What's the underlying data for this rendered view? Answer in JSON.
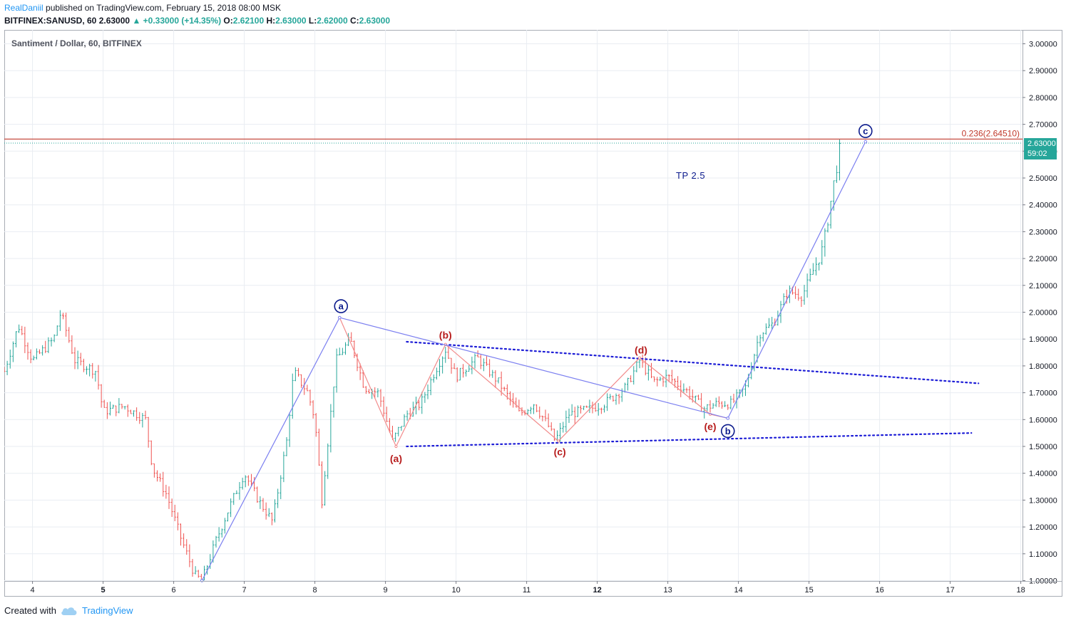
{
  "header": {
    "author": "RealDaniil",
    "published": "published on TradingView.com, February 15, 2018 08:00 MSK",
    "symbol_line": "BITFINEX:SANUSD, 60",
    "last": "2.63000",
    "change": "▲ +0.33000 (+14.35%)",
    "o_label": "O:",
    "o_value": "2.62100",
    "h_label": "H:",
    "h_value": "2.63000",
    "l_label": "L:",
    "l_value": "2.62000",
    "c_label": "C:",
    "c_value": "2.63000"
  },
  "chart_title": "Santiment / Dollar, 60, BITFINEX",
  "footer": {
    "created_with": "Created with",
    "brand": "TradingView"
  },
  "colors": {
    "up": "#26a69a",
    "down": "#ef5350",
    "grid": "#e9edf2",
    "wave_main": "#7b7ff0",
    "wave_sub": "#f28b8b",
    "trend": "#1c1cd6",
    "fib": "#c0392b",
    "label_dark": "#0b1a8c",
    "label_red": "#b71c1c"
  },
  "chart_data": {
    "type": "candlestick",
    "title": "Santiment / Dollar, 60, BITFINEX",
    "y_axis": {
      "ticks": [
        "1.00000",
        "1.10000",
        "1.20000",
        "1.30000",
        "1.40000",
        "1.50000",
        "1.60000",
        "1.70000",
        "1.80000",
        "1.90000",
        "2.00000",
        "2.10000",
        "2.20000",
        "2.30000",
        "2.40000",
        "2.50000",
        "2.60000",
        "2.70000",
        "2.80000",
        "2.90000",
        "3.00000"
      ],
      "range": [
        1.0,
        3.0
      ]
    },
    "x_axis": {
      "ticks": [
        "4",
        "5",
        "6",
        "7",
        "8",
        "9",
        "10",
        "11",
        "12",
        "13",
        "14",
        "15",
        "16",
        "17",
        "18"
      ],
      "range": [
        3.6,
        18.0
      ],
      "bold_ticks": [
        "5",
        "12"
      ]
    },
    "price_path": [
      [
        3.6,
        1.78
      ],
      [
        3.8,
        1.95
      ],
      [
        4.0,
        1.82
      ],
      [
        4.3,
        1.9
      ],
      [
        4.4,
        2.0
      ],
      [
        4.6,
        1.82
      ],
      [
        4.9,
        1.78
      ],
      [
        5.0,
        1.63
      ],
      [
        5.3,
        1.65
      ],
      [
        5.6,
        1.6
      ],
      [
        5.7,
        1.42
      ],
      [
        5.9,
        1.32
      ],
      [
        6.1,
        1.16
      ],
      [
        6.3,
        1.02
      ],
      [
        6.4,
        1.0
      ],
      [
        6.6,
        1.15
      ],
      [
        6.8,
        1.28
      ],
      [
        7.0,
        1.4
      ],
      [
        7.2,
        1.3
      ],
      [
        7.4,
        1.22
      ],
      [
        7.6,
        1.52
      ],
      [
        7.7,
        1.78
      ],
      [
        7.9,
        1.7
      ],
      [
        8.0,
        1.6
      ],
      [
        8.1,
        1.3
      ],
      [
        8.3,
        1.82
      ],
      [
        8.5,
        1.9
      ],
      [
        8.7,
        1.72
      ],
      [
        8.9,
        1.7
      ],
      [
        9.1,
        1.52
      ],
      [
        9.3,
        1.62
      ],
      [
        9.5,
        1.66
      ],
      [
        9.7,
        1.78
      ],
      [
        9.85,
        1.86
      ],
      [
        10.0,
        1.76
      ],
      [
        10.3,
        1.83
      ],
      [
        10.6,
        1.74
      ],
      [
        10.9,
        1.62
      ],
      [
        11.1,
        1.66
      ],
      [
        11.3,
        1.58
      ],
      [
        11.4,
        1.52
      ],
      [
        11.6,
        1.62
      ],
      [
        11.9,
        1.64
      ],
      [
        12.1,
        1.66
      ],
      [
        12.4,
        1.72
      ],
      [
        12.6,
        1.82
      ],
      [
        12.8,
        1.74
      ],
      [
        13.0,
        1.76
      ],
      [
        13.3,
        1.7
      ],
      [
        13.5,
        1.64
      ],
      [
        13.7,
        1.66
      ],
      [
        13.9,
        1.66
      ],
      [
        14.1,
        1.72
      ],
      [
        14.3,
        1.92
      ],
      [
        14.5,
        1.96
      ],
      [
        14.7,
        2.08
      ],
      [
        14.9,
        2.06
      ],
      [
        15.0,
        2.12
      ],
      [
        15.2,
        2.24
      ],
      [
        15.35,
        2.48
      ],
      [
        15.45,
        2.63
      ]
    ],
    "last_price": 2.63,
    "countdown": "59:02",
    "annotations": {
      "fib_level": "0.236(2.64510)",
      "fib_value": 2.6451,
      "tp_text": "TP 2.5",
      "waves_main": [
        {
          "label": "a",
          "x": 8.35,
          "y": 1.98
        },
        {
          "label": "b",
          "x": 13.85,
          "y": 1.605
        },
        {
          "label": "c",
          "x": 15.8,
          "y": 2.635
        }
      ],
      "waves_sub": [
        {
          "label": "(a)",
          "x": 9.15,
          "y": 1.5
        },
        {
          "label": "(b)",
          "x": 9.85,
          "y": 1.88
        },
        {
          "label": "(c)",
          "x": 11.45,
          "y": 1.52
        },
        {
          "label": "(d)",
          "x": 12.6,
          "y": 1.83
        },
        {
          "label": "(e)",
          "x": 13.6,
          "y": 1.62
        }
      ],
      "impulse_path": [
        [
          6.4,
          1.0
        ],
        [
          8.35,
          1.98
        ],
        [
          13.85,
          1.605
        ],
        [
          15.8,
          2.635
        ]
      ],
      "sub_path": [
        [
          8.35,
          1.98
        ],
        [
          9.15,
          1.5
        ],
        [
          9.85,
          1.88
        ],
        [
          11.45,
          1.52
        ],
        [
          12.6,
          1.83
        ],
        [
          13.6,
          1.62
        ],
        [
          13.85,
          1.605
        ]
      ],
      "trendlines": [
        {
          "from": [
            9.3,
            1.89
          ],
          "to": [
            17.4,
            1.735
          ]
        },
        {
          "from": [
            9.3,
            1.5
          ],
          "to": [
            17.3,
            1.55
          ]
        }
      ]
    }
  }
}
